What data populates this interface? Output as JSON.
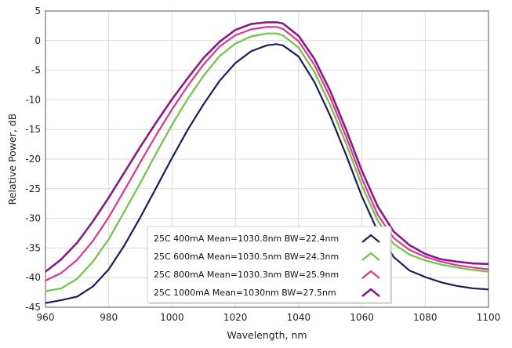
{
  "chart_data": {
    "type": "line",
    "title": "",
    "xlabel": "Wavelength, nm",
    "ylabel": "Relative Power, dB",
    "xlim": [
      960,
      1100
    ],
    "ylim": [
      -45,
      5
    ],
    "xticks": [
      960,
      980,
      1000,
      1020,
      1040,
      1060,
      1080,
      1100
    ],
    "yticks": [
      5,
      0,
      -5,
      -10,
      -15,
      -20,
      -25,
      -30,
      -35,
      -40,
      -45
    ],
    "grid": true,
    "legend_position": "bottom-center",
    "series": [
      {
        "name": "25C 400mA Mean=1030.8nm BW=22.4nm",
        "color": "#1f1a5c",
        "x": [
          960,
          965,
          970,
          975,
          980,
          985,
          990,
          995,
          1000,
          1005,
          1010,
          1015,
          1020,
          1025,
          1030,
          1033,
          1035,
          1040,
          1045,
          1050,
          1055,
          1060,
          1065,
          1070,
          1075,
          1080,
          1085,
          1090,
          1095,
          1100
        ],
        "y": [
          -44.3,
          -43.8,
          -43.2,
          -41.5,
          -38.6,
          -34.5,
          -29.8,
          -24.8,
          -19.8,
          -15.0,
          -10.7,
          -6.8,
          -3.8,
          -1.8,
          -0.8,
          -0.6,
          -0.8,
          -2.7,
          -7.0,
          -12.7,
          -19.3,
          -26.3,
          -32.2,
          -36.5,
          -38.8,
          -39.9,
          -40.8,
          -41.4,
          -41.8,
          -42.0
        ]
      },
      {
        "name": "25C 600mA Mean=1030.5nm BW=24.3nm",
        "color": "#6cc644",
        "x": [
          960,
          965,
          970,
          975,
          980,
          985,
          990,
          995,
          1000,
          1005,
          1010,
          1015,
          1020,
          1025,
          1030,
          1033,
          1035,
          1040,
          1045,
          1050,
          1055,
          1060,
          1065,
          1070,
          1075,
          1080,
          1085,
          1090,
          1095,
          1100
        ],
        "y": [
          -42.3,
          -41.8,
          -40.2,
          -37.3,
          -33.5,
          -28.8,
          -24.0,
          -19.0,
          -14.2,
          -9.8,
          -5.9,
          -2.6,
          -0.5,
          0.7,
          1.2,
          1.2,
          0.9,
          -1.2,
          -5.3,
          -10.9,
          -17.4,
          -24.5,
          -30.4,
          -34.3,
          -36.1,
          -37.1,
          -37.8,
          -38.3,
          -38.7,
          -39.0
        ]
      },
      {
        "name": "25C 800mA Mean=1030.3nm BW=25.9nm",
        "color": "#e0358a",
        "x": [
          960,
          965,
          970,
          975,
          980,
          985,
          990,
          995,
          1000,
          1005,
          1010,
          1015,
          1020,
          1025,
          1030,
          1033,
          1035,
          1040,
          1045,
          1050,
          1055,
          1060,
          1065,
          1070,
          1075,
          1080,
          1085,
          1090,
          1095,
          1100
        ],
        "y": [
          -40.5,
          -39.2,
          -37.0,
          -33.8,
          -29.8,
          -25.2,
          -20.5,
          -15.9,
          -11.6,
          -7.6,
          -4.0,
          -1.0,
          0.9,
          1.9,
          2.3,
          2.3,
          2.0,
          -0.1,
          -4.1,
          -9.6,
          -16.2,
          -23.3,
          -29.4,
          -33.3,
          -35.3,
          -36.5,
          -37.3,
          -37.9,
          -38.3,
          -38.6
        ]
      },
      {
        "name": "25C 1000mA Mean=1030nm BW=27.5nm",
        "color": "#8a1a8a",
        "x": [
          960,
          965,
          970,
          975,
          980,
          985,
          990,
          995,
          1000,
          1005,
          1010,
          1015,
          1020,
          1025,
          1030,
          1033,
          1035,
          1040,
          1045,
          1050,
          1055,
          1060,
          1065,
          1070,
          1075,
          1080,
          1085,
          1090,
          1095,
          1100
        ],
        "y": [
          -39.0,
          -36.9,
          -34.1,
          -30.5,
          -26.5,
          -22.2,
          -17.9,
          -13.8,
          -9.9,
          -6.3,
          -2.9,
          -0.2,
          1.8,
          2.8,
          3.1,
          3.1,
          2.9,
          0.8,
          -3.1,
          -8.5,
          -15.0,
          -22.0,
          -28.0,
          -32.2,
          -34.5,
          -36.0,
          -36.9,
          -37.3,
          -37.6,
          -37.7
        ]
      }
    ]
  }
}
